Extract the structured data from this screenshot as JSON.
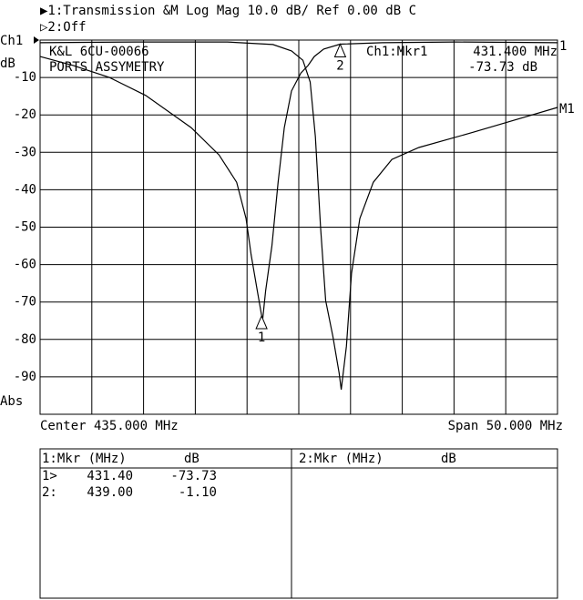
{
  "chart_data": {
    "type": "line",
    "header": [
      "▶1:Transmission  &M Log Mag  10.0 dB/  Ref   0.00 dB  C",
      "▷2:Off"
    ],
    "y_label_top": "Ch1",
    "y_unit": "dB",
    "y_label_bottom": "Abs",
    "x_label_left": "Center 435.000 MHz",
    "x_label_right": "Span 50.000 MHz",
    "annotations": [
      "K&L 6CU-00066",
      "PORTS ASSYMETRY",
      "Ch1:Mkr1",
      "431.400 MHz",
      "-73.73 dB"
    ],
    "xlim": [
      410,
      460
    ],
    "ylim": [
      -100,
      0
    ],
    "yticks": [
      -10,
      -20,
      -30,
      -40,
      -50,
      -60,
      -70,
      -80,
      -90
    ],
    "grid": true,
    "series": [
      {
        "name": "1",
        "color": "#000000",
        "x": [
          410,
          413.2,
          416.7,
          420.2,
          424.6,
          427.3,
          429.0,
          429.9,
          430.4,
          431.0,
          431.5,
          431.8,
          432.4,
          433.0,
          433.6,
          434.3,
          435.2,
          435.9,
          436.5,
          437.4,
          439.0,
          443.1,
          450.1,
          460
        ],
        "values": [
          -4.4,
          -6.8,
          -10,
          -14.8,
          -23.4,
          -30.7,
          -38,
          -47.7,
          -57.4,
          -67.2,
          -75,
          -67,
          -55,
          -38,
          -23.4,
          -13.6,
          -8.8,
          -6.8,
          -4.4,
          -2.4,
          -1.1,
          -0.7,
          -0.5,
          -0.7
        ]
      },
      {
        "name": "M1",
        "color": "#000000",
        "x": [
          410,
          419.3,
          428.1,
          432.5,
          434.3,
          435.4,
          436.1,
          436.6,
          437.1,
          437.6,
          438.3,
          438.9,
          439.1,
          439.6,
          440.1,
          440.9,
          442.2,
          444.0,
          446.6,
          451.9,
          460
        ],
        "values": [
          -0.7,
          -0.5,
          -0.5,
          -1.2,
          -2.9,
          -5.4,
          -11.2,
          -25.8,
          -50,
          -69.6,
          -79.3,
          -89,
          -93.4,
          -81.8,
          -62.3,
          -47.7,
          -38,
          -31.9,
          -28.7,
          -24.6,
          -18
        ]
      }
    ],
    "markers": [
      {
        "label": "1",
        "x": 431.4,
        "value": -73.73
      },
      {
        "label": "2",
        "x": 439.0,
        "value": -1.1
      }
    ]
  },
  "marker_table": {
    "panels": [
      {
        "header": [
          "1:Mkr (MHz)",
          "dB"
        ],
        "rows": [
          [
            "1>",
            "431.40",
            "-73.73"
          ],
          [
            "2:",
            "439.00",
            "-1.10"
          ]
        ]
      },
      {
        "header": [
          "2:Mkr (MHz)",
          "dB"
        ],
        "rows": []
      }
    ]
  }
}
